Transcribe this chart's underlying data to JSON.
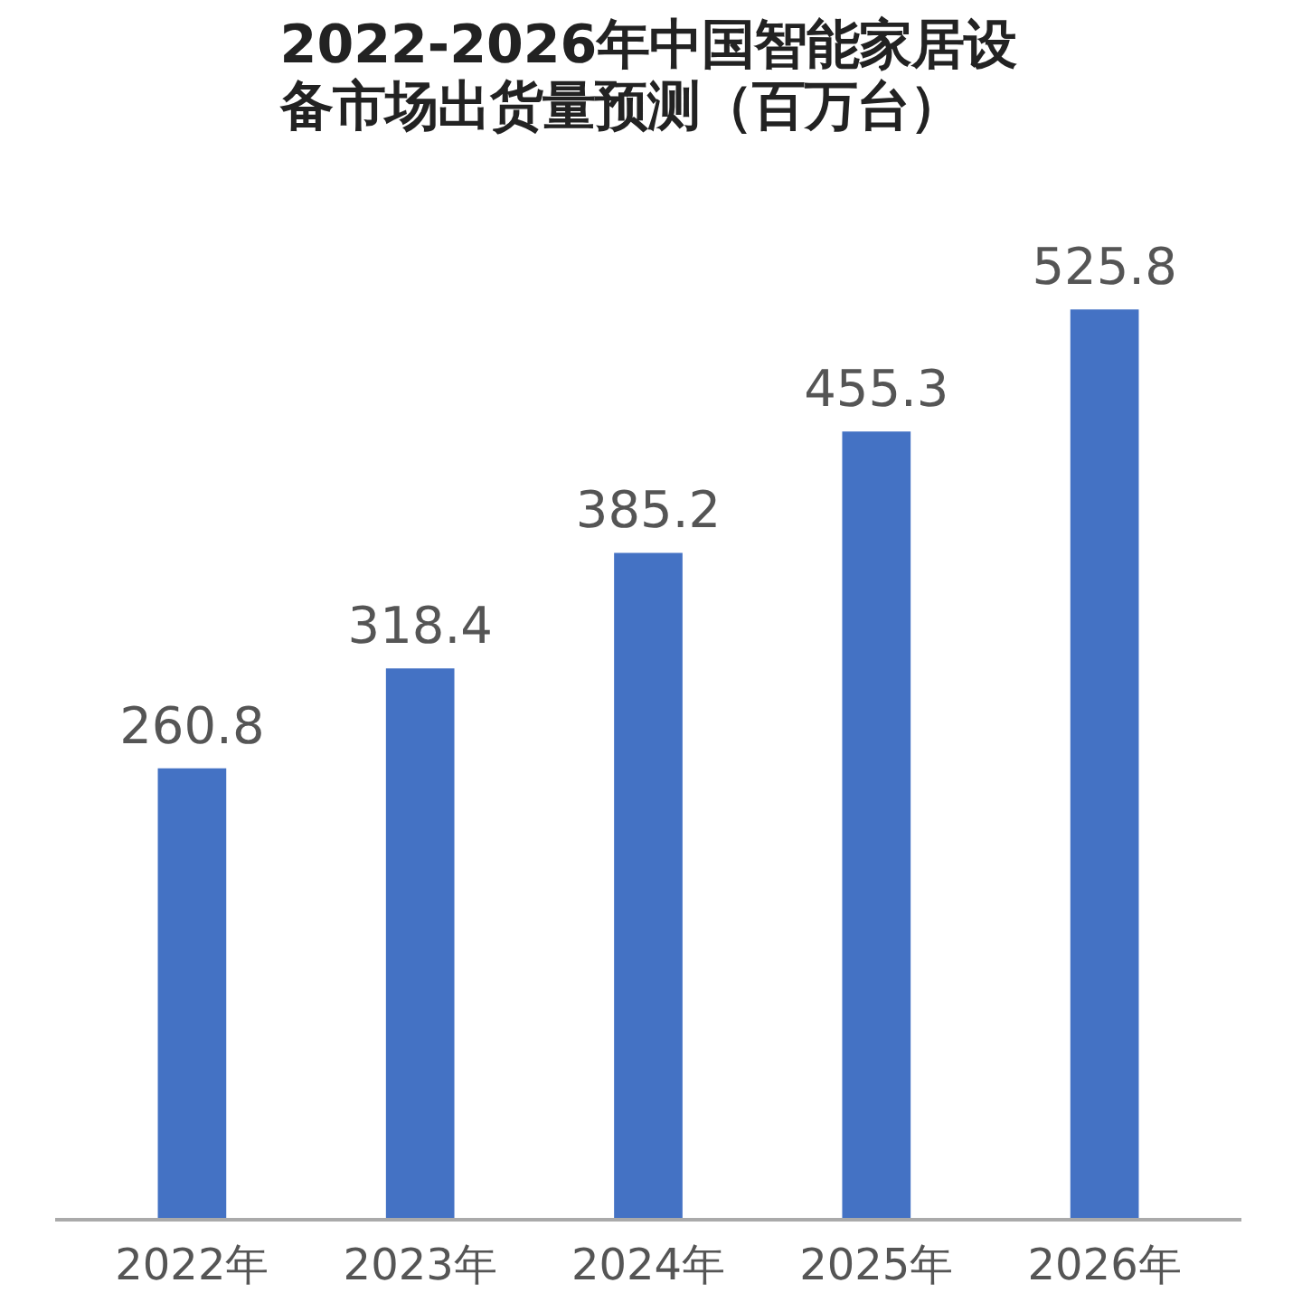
{
  "chart_data": {
    "type": "bar",
    "title": "2022-2026年中国智能家居设备市场出货量预测（百万台）",
    "categories": [
      "2022年",
      "2023年",
      "2024年",
      "2025年",
      "2026年"
    ],
    "values": [
      260.8,
      318.4,
      385.2,
      455.3,
      525.8
    ],
    "color": "#4472c4",
    "data_labels": true,
    "grid": false
  }
}
